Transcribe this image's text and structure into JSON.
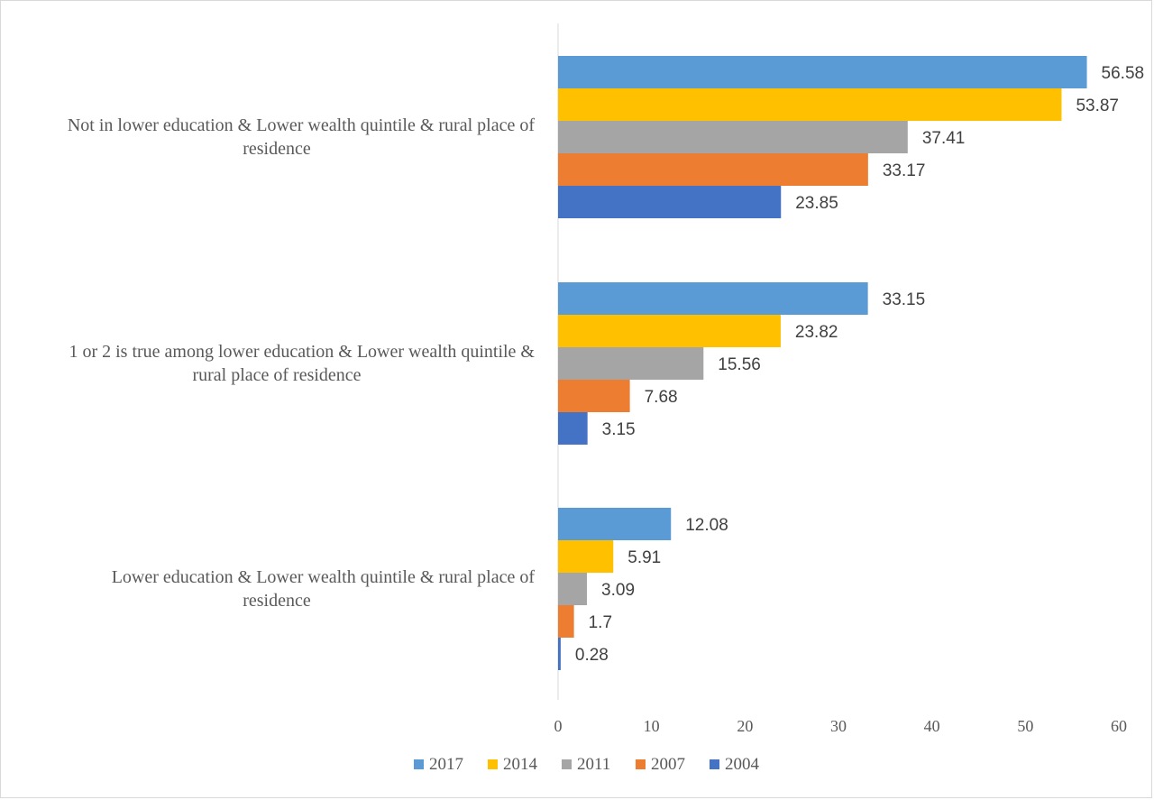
{
  "chart_data": {
    "type": "bar",
    "orientation": "horizontal",
    "categories": [
      [
        "Not in lower education & Lower wealth quintile & rural place of",
        "residence"
      ],
      [
        "1 or 2  is true among lower education & Lower wealth quintile &",
        "rural place of residence"
      ],
      [
        "Lower education & Lower wealth quintile & rural place of",
        "residence"
      ]
    ],
    "series": [
      {
        "name": "2017",
        "color": "#5b9bd5",
        "values": [
          56.58,
          33.15,
          12.08
        ]
      },
      {
        "name": "2014",
        "color": "#ffc000",
        "values": [
          53.87,
          23.82,
          5.91
        ]
      },
      {
        "name": "2011",
        "color": "#a5a5a5",
        "values": [
          37.41,
          15.56,
          3.09
        ]
      },
      {
        "name": "2007",
        "color": "#ed7d31",
        "values": [
          33.17,
          7.68,
          1.7
        ]
      },
      {
        "name": "2004",
        "color": "#4472c4",
        "values": [
          23.85,
          3.15,
          0.28
        ]
      }
    ],
    "xlim": [
      0,
      60
    ],
    "xticks": [
      0,
      10,
      20,
      30,
      40,
      50,
      60
    ],
    "grid": false,
    "legend": "bottom",
    "title": "",
    "xlabel": "",
    "ylabel": ""
  }
}
